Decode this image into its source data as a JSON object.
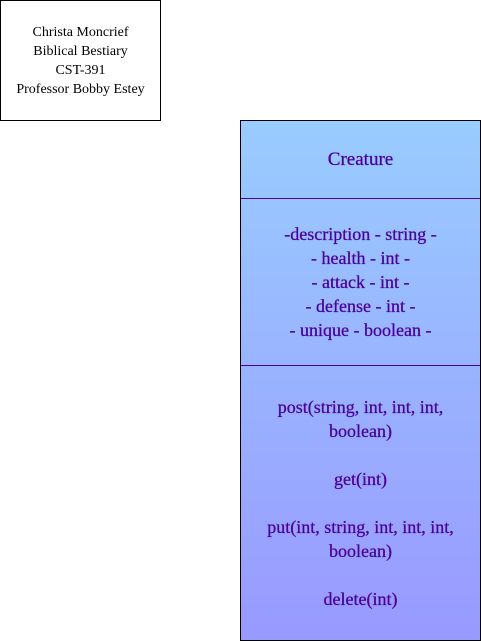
{
  "info": {
    "lines": [
      "Christa Moncrief",
      "Biblical Bestiary",
      "CST-391",
      "Professor Bobby Estey"
    ]
  },
  "class": {
    "name": "Creature",
    "attributes": [
      "-description - string -",
      "- health - int -",
      "- attack - int -",
      "- defense - int -",
      "- unique - boolean -"
    ],
    "methods": [
      "post(string, int, int, int, boolean)",
      "get(int)",
      "put(int, string, int, int, int, boolean)",
      "delete(int)"
    ]
  },
  "colors": {
    "text": "#4c0099",
    "gradient_top": "#99ccff",
    "gradient_bottom": "#9999ff"
  }
}
